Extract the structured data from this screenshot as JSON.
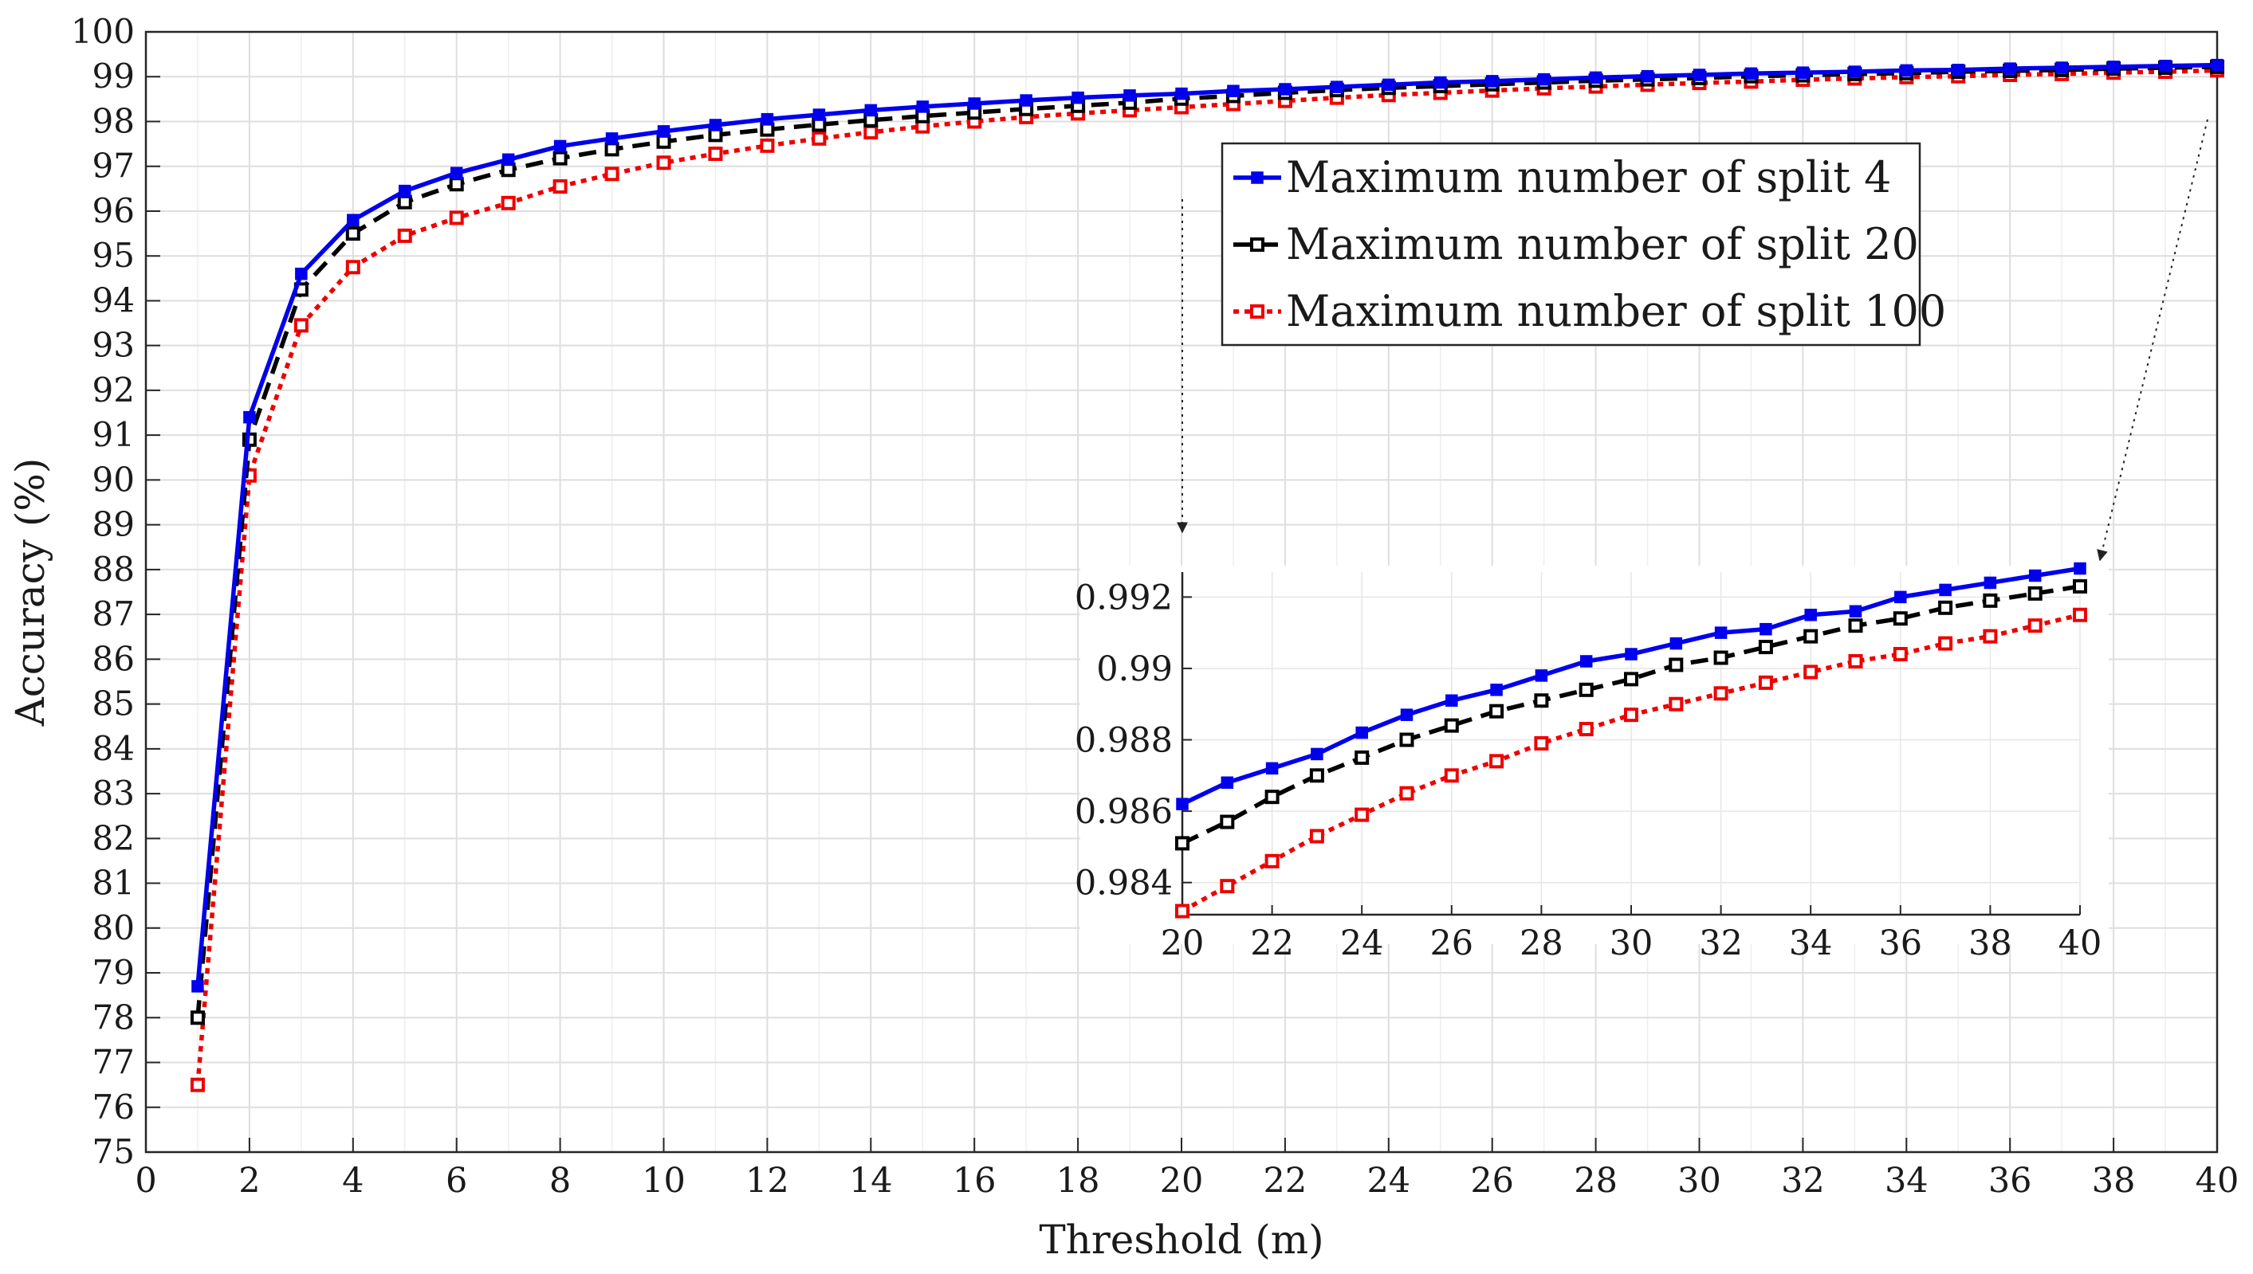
{
  "chart_data": {
    "type": "line",
    "xlabel": "Threshold (m)",
    "ylabel": "Accuracy (%)",
    "xlim": [
      0,
      40
    ],
    "ylim": [
      75,
      100
    ],
    "xticks": [
      "0",
      "2",
      "4",
      "6",
      "8",
      "10",
      "12",
      "14",
      "16",
      "18",
      "20",
      "22",
      "24",
      "26",
      "28",
      "30",
      "32",
      "34",
      "36",
      "38",
      "40"
    ],
    "yticks": [
      "75",
      "76",
      "77",
      "78",
      "79",
      "80",
      "81",
      "82",
      "83",
      "84",
      "85",
      "86",
      "87",
      "88",
      "89",
      "90",
      "91",
      "92",
      "93",
      "94",
      "95",
      "96",
      "97",
      "98",
      "99",
      "100"
    ],
    "grid": true,
    "legend_position": "upper-right",
    "x": [
      1,
      2,
      3,
      4,
      5,
      6,
      7,
      8,
      9,
      10,
      11,
      12,
      13,
      14,
      15,
      16,
      17,
      18,
      19,
      20,
      21,
      22,
      23,
      24,
      25,
      26,
      27,
      28,
      29,
      30,
      31,
      32,
      33,
      34,
      35,
      36,
      37,
      38,
      39,
      40
    ],
    "series": [
      {
        "name": "Maximum number of split 4",
        "color": "#0000ee",
        "line_style": "solid",
        "marker": "filled-square",
        "values": [
          78.7,
          91.4,
          94.6,
          95.8,
          96.45,
          96.85,
          97.15,
          97.45,
          97.62,
          97.78,
          97.92,
          98.05,
          98.15,
          98.25,
          98.33,
          98.4,
          98.47,
          98.53,
          98.58,
          98.62,
          98.68,
          98.72,
          98.77,
          98.82,
          98.87,
          98.9,
          98.94,
          98.98,
          99.01,
          99.04,
          99.07,
          99.09,
          99.11,
          99.14,
          99.15,
          99.18,
          99.2,
          99.22,
          99.24,
          99.26
        ]
      },
      {
        "name": "Maximum number of split 20",
        "color": "#000000",
        "line_style": "dashed",
        "marker": "open-square",
        "values": [
          78.0,
          90.9,
          94.25,
          95.5,
          96.2,
          96.6,
          96.92,
          97.18,
          97.38,
          97.55,
          97.7,
          97.82,
          97.93,
          98.03,
          98.12,
          98.2,
          98.28,
          98.35,
          98.42,
          98.51,
          98.57,
          98.64,
          98.7,
          98.75,
          98.79,
          98.83,
          98.87,
          98.91,
          98.94,
          98.97,
          99.01,
          99.03,
          99.06,
          99.08,
          99.11,
          99.13,
          99.15,
          99.18,
          99.2,
          99.22
        ]
      },
      {
        "name": "Maximum number of split 100",
        "color": "#ee0000",
        "line_style": "dotted",
        "marker": "open-square",
        "values": [
          76.5,
          90.1,
          93.45,
          94.75,
          95.45,
          95.85,
          96.18,
          96.55,
          96.83,
          97.08,
          97.28,
          97.46,
          97.62,
          97.76,
          97.89,
          98.0,
          98.1,
          98.18,
          98.25,
          98.32,
          98.39,
          98.46,
          98.53,
          98.59,
          98.64,
          98.69,
          98.74,
          98.78,
          98.82,
          98.86,
          98.89,
          98.93,
          98.96,
          98.99,
          99.01,
          99.04,
          99.06,
          99.09,
          99.11,
          99.14
        ]
      }
    ],
    "inset": {
      "xlim": [
        20,
        40
      ],
      "ylim": [
        0.9831,
        0.9927
      ],
      "xticks": [
        "20",
        "22",
        "24",
        "26",
        "28",
        "30",
        "32",
        "34",
        "36",
        "38",
        "40"
      ],
      "yticks": [
        "0.984",
        "0.986",
        "0.988",
        "0.99",
        "0.992"
      ],
      "x": [
        20,
        21,
        22,
        23,
        24,
        25,
        26,
        27,
        28,
        29,
        30,
        31,
        32,
        33,
        34,
        35,
        36,
        37,
        38,
        39,
        40
      ],
      "series": [
        {
          "name": "Maximum number of split 4",
          "values": [
            0.9862,
            0.9868,
            0.9872,
            0.9876,
            0.9882,
            0.9887,
            0.9891,
            0.9894,
            0.9898,
            0.9902,
            0.9904,
            0.9907,
            0.991,
            0.9911,
            0.9915,
            0.9916,
            0.992,
            0.9922,
            0.9924,
            0.9926,
            0.9928
          ]
        },
        {
          "name": "Maximum number of split 20",
          "values": [
            0.9851,
            0.9857,
            0.9864,
            0.987,
            0.9875,
            0.988,
            0.9884,
            0.9888,
            0.9891,
            0.9894,
            0.9897,
            0.9901,
            0.9903,
            0.9906,
            0.9909,
            0.9912,
            0.9914,
            0.9917,
            0.9919,
            0.9921,
            0.9923
          ]
        },
        {
          "name": "Maximum number of split 100",
          "values": [
            0.9832,
            0.9839,
            0.9846,
            0.9853,
            0.9859,
            0.9865,
            0.987,
            0.9874,
            0.9879,
            0.9883,
            0.9887,
            0.989,
            0.9893,
            0.9896,
            0.9899,
            0.9902,
            0.9904,
            0.9907,
            0.9909,
            0.9912,
            0.9915
          ]
        }
      ]
    }
  }
}
